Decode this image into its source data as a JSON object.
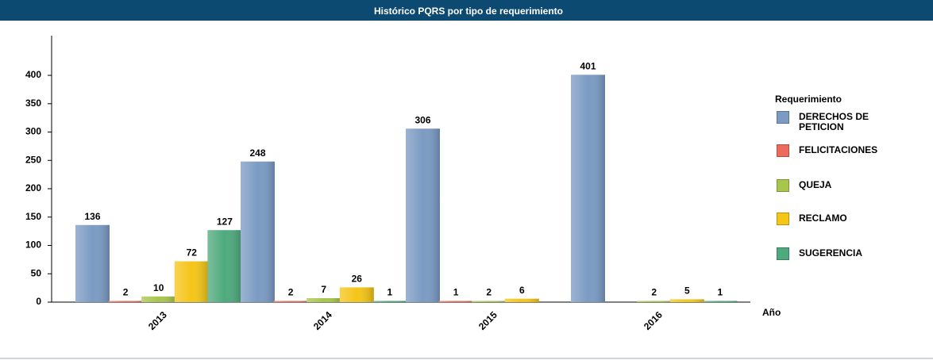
{
  "chart_data": {
    "type": "bar",
    "title": "Histórico PQRS por tipo de requerimiento",
    "categories": [
      "2013",
      "2014",
      "2015",
      "2016"
    ],
    "x_label": "Año",
    "legend_title": "Requerimiento",
    "series": [
      {
        "name": "DERECHOS DE PETICION",
        "color": "#7b9bc4",
        "values": [
          136,
          248,
          306,
          401
        ]
      },
      {
        "name": "FELICITACIONES",
        "color": "#ec6a5e",
        "values": [
          2,
          2,
          1,
          null
        ]
      },
      {
        "name": "QUEJA",
        "color": "#a8c64c",
        "values": [
          10,
          7,
          2,
          2
        ]
      },
      {
        "name": "RECLAMO",
        "color": "#f5c518",
        "values": [
          72,
          26,
          6,
          5
        ]
      },
      {
        "name": "SUGERENCIA",
        "color": "#4eaa7c",
        "values": [
          127,
          1,
          null,
          1
        ]
      }
    ],
    "ylim": [
      0,
      470
    ],
    "yticks": [
      0,
      50,
      100,
      150,
      200,
      250,
      300,
      350,
      400
    ]
  }
}
